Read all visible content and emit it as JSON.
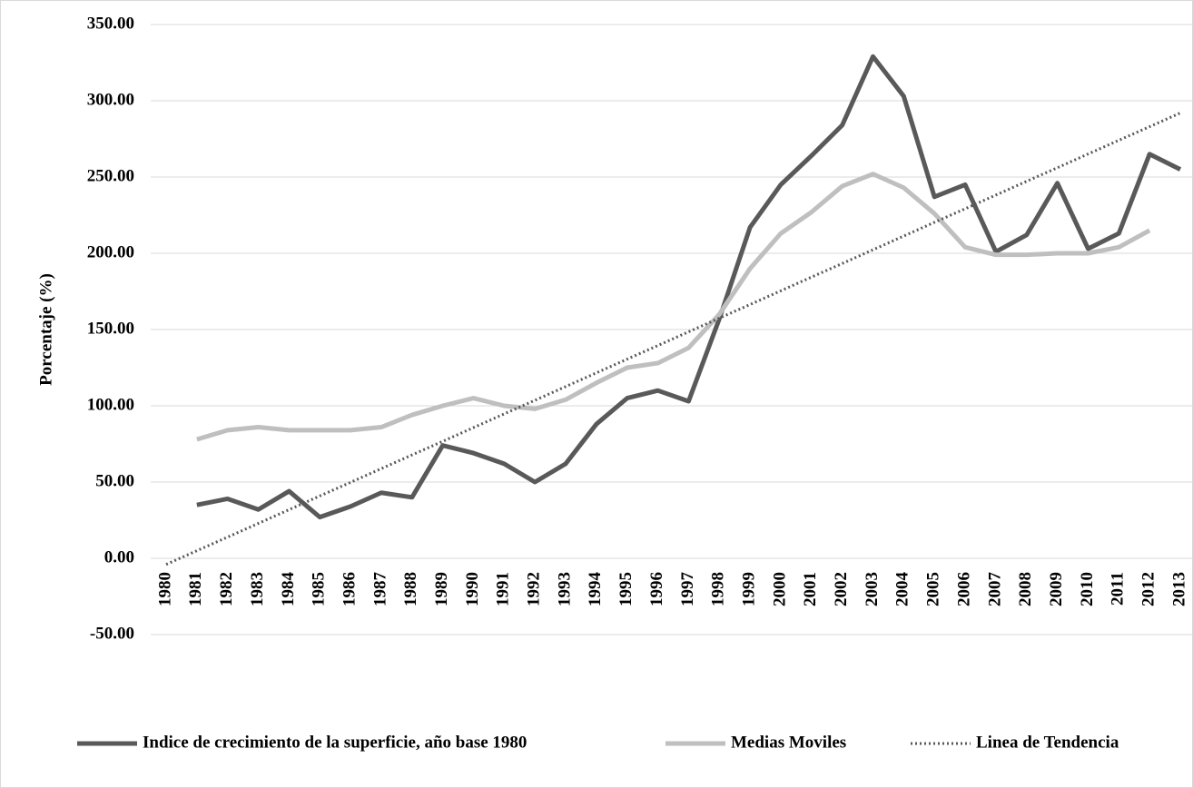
{
  "chart_data": {
    "type": "line",
    "y_label": "Porcentaje (%)",
    "categories": [
      "1980",
      "1981",
      "1982",
      "1983",
      "1984",
      "1985",
      "1986",
      "1987",
      "1988",
      "1989",
      "1990",
      "1991",
      "1992",
      "1993",
      "1994",
      "1995",
      "1996",
      "1997",
      "1998",
      "1999",
      "2000",
      "2001",
      "2002",
      "2003",
      "2004",
      "2005",
      "2006",
      "2007",
      "2008",
      "2009",
      "2010",
      "2011",
      "2012",
      "2013"
    ],
    "series": [
      {
        "name": "Indice de crecimiento de la superficie, año base 1980",
        "color": "#595959",
        "style": "solid",
        "values": [
          null,
          35,
          39,
          32,
          44,
          27,
          34,
          43,
          40,
          74,
          69,
          62,
          50,
          62,
          88,
          105,
          110,
          103,
          157,
          217,
          245,
          264,
          284,
          329,
          303,
          237,
          245,
          201,
          212,
          246,
          203,
          213,
          265,
          255
        ]
      },
      {
        "name": "Medias Moviles",
        "color": "#bfbfbf",
        "style": "solid",
        "values": [
          null,
          78,
          84,
          86,
          84,
          84,
          84,
          86,
          94,
          100,
          105,
          100,
          98,
          104,
          115,
          125,
          128,
          138,
          160,
          190,
          213,
          227,
          244,
          252,
          243,
          226,
          204,
          199,
          199,
          200,
          200,
          204,
          215,
          null
        ]
      },
      {
        "name": "Linea de Tendencia",
        "color": "#595959",
        "style": "dotted",
        "values": [
          -4.0,
          5.0,
          13.9,
          22.9,
          31.9,
          40.9,
          49.8,
          58.8,
          67.8,
          76.7,
          85.7,
          94.7,
          103.6,
          112.6,
          121.6,
          130.6,
          139.5,
          148.5,
          157.5,
          166.4,
          175.4,
          184.4,
          193.3,
          202.3,
          211.3,
          220.3,
          229.2,
          238.2,
          247.2,
          256.1,
          265.1,
          274.1,
          283.0,
          292.0
        ]
      }
    ],
    "ylim": [
      -50,
      350
    ],
    "yticks": [
      {
        "value": -50,
        "label": "-50.00"
      },
      {
        "value": 0,
        "label": "0.00"
      },
      {
        "value": 50,
        "label": "50.00"
      },
      {
        "value": 100,
        "label": "100.00"
      },
      {
        "value": 150,
        "label": "150.00"
      },
      {
        "value": 200,
        "label": "200.00"
      },
      {
        "value": 250,
        "label": "250.00"
      },
      {
        "value": 300,
        "label": "300.00"
      },
      {
        "value": 350,
        "label": "350.00"
      }
    ],
    "grid": true,
    "legend": "bottom"
  }
}
